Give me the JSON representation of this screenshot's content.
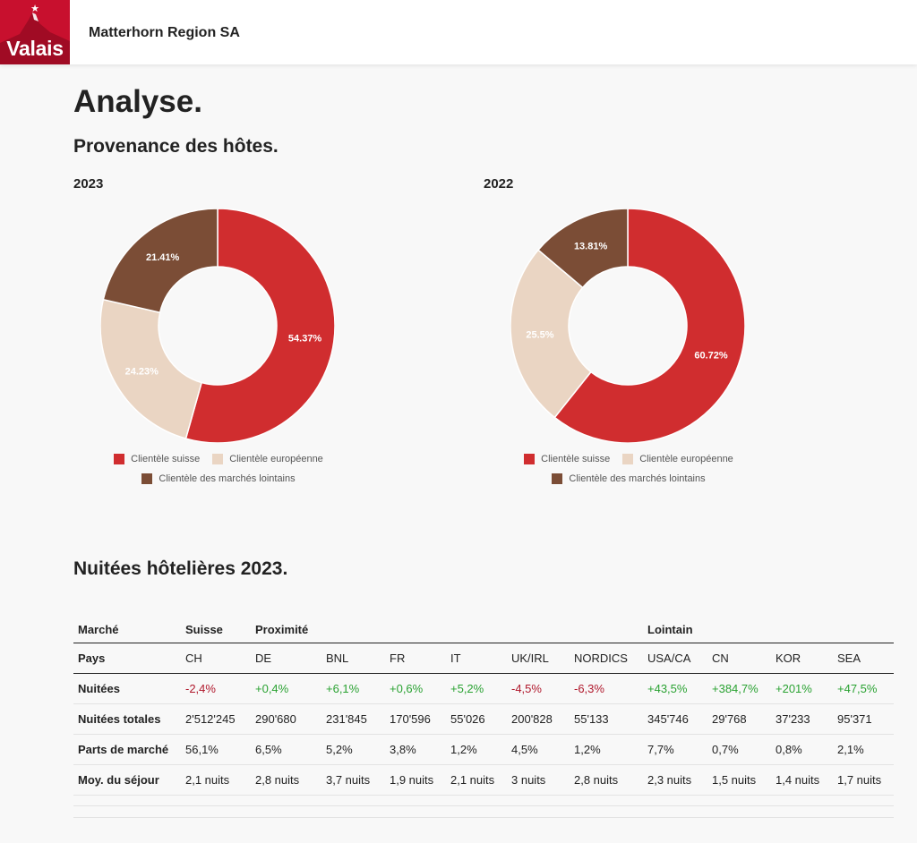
{
  "header": {
    "logo_text": "Valais",
    "org_name": "Matterhorn Region SA"
  },
  "page_title": "Analyse.",
  "section1_title": "Provenance des hôtes.",
  "charts_legend": {
    "swiss": "Clientèle suisse",
    "european": "Clientèle européenne",
    "distant": "Clientèle des marchés lointains"
  },
  "colors": {
    "swiss": "#d02d2f",
    "european": "#ead5c3",
    "distant": "#7b4d36",
    "negative": "#b0182c",
    "positive": "#2aa232",
    "brand": "#c8102e"
  },
  "chart_data": [
    {
      "type": "pie",
      "title": "2023",
      "labels": [
        "Clientèle suisse",
        "Clientèle européenne",
        "Clientèle des marchés lointains"
      ],
      "values": [
        54.37,
        24.23,
        21.41
      ],
      "value_labels": [
        "54.37%",
        "24.23%",
        "21.41%"
      ],
      "donut": true,
      "legend": "bottom"
    },
    {
      "type": "pie",
      "title": "2022",
      "labels": [
        "Clientèle suisse",
        "Clientèle européenne",
        "Clientèle des marchés lointains"
      ],
      "values": [
        60.72,
        25.5,
        13.81
      ],
      "value_labels": [
        "60.72%",
        "25.5%",
        "13.81%"
      ],
      "donut": true,
      "legend": "bottom"
    }
  ],
  "section2_title": "Nuitées hôtelières 2023.",
  "table": {
    "group_header": {
      "col0": "Marché",
      "suisse": "Suisse",
      "proximite": "Proximité",
      "lointain": "Lointain"
    },
    "countries_label": "Pays",
    "countries": [
      "CH",
      "DE",
      "BNL",
      "FR",
      "IT",
      "UK/IRL",
      "NORDICS",
      "USA/CA",
      "CN",
      "KOR",
      "SEA"
    ],
    "rows": [
      {
        "label": "Nuitées",
        "values": [
          "-2,4%",
          "+0,4%",
          "+6,1%",
          "+0,6%",
          "+5,2%",
          "-4,5%",
          "-6,3%",
          "+43,5%",
          "+384,7%",
          "+201%",
          "+47,5%"
        ]
      },
      {
        "label": "Nuitées totales",
        "values": [
          "2'512'245",
          "290'680",
          "231'845",
          "170'596",
          "55'026",
          "200'828",
          "55'133",
          "345'746",
          "29'768",
          "37'233",
          "95'371"
        ]
      },
      {
        "label": "Parts de marché",
        "values": [
          "56,1%",
          "6,5%",
          "5,2%",
          "3,8%",
          "1,2%",
          "4,5%",
          "1,2%",
          "7,7%",
          "0,7%",
          "0,8%",
          "2,1%"
        ]
      },
      {
        "label": "Moy. du séjour",
        "values": [
          "2,1 nuits",
          "2,8 nuits",
          "3,7 nuits",
          "1,9 nuits",
          "2,1 nuits",
          "3 nuits",
          "2,8 nuits",
          "2,3 nuits",
          "1,5 nuits",
          "1,4 nuits",
          "1,7 nuits"
        ]
      }
    ]
  }
}
